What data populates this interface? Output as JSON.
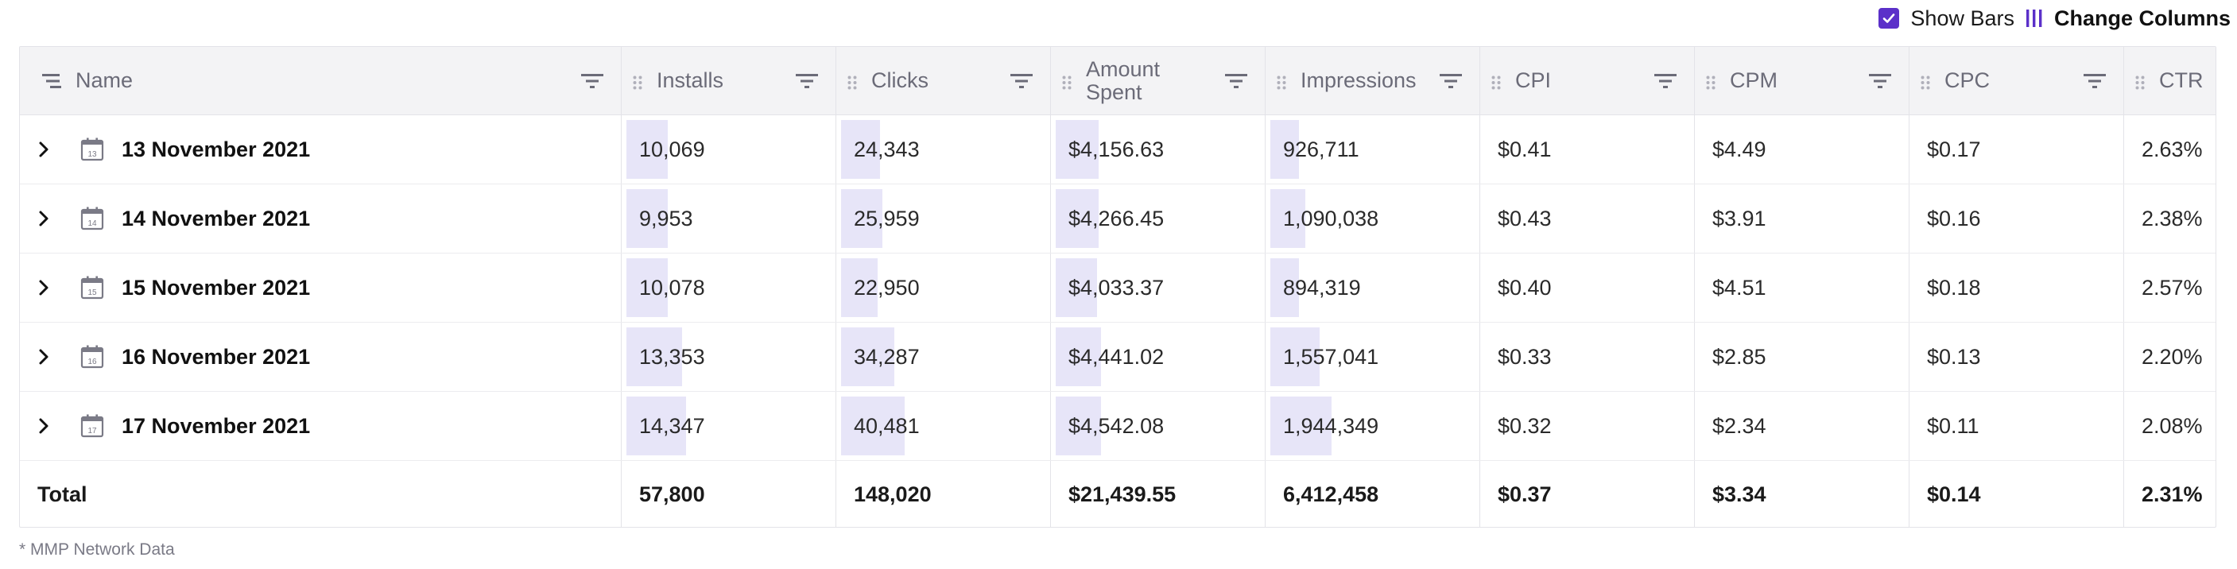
{
  "toolbar": {
    "show_bars_label": "Show Bars",
    "show_bars_checked": true,
    "change_columns_label": "Change Columns"
  },
  "colors": {
    "accent": "#5b30c9",
    "bar": "#e7e5f8",
    "header_bg": "#f3f3f5"
  },
  "columns": [
    "Name",
    "Installs",
    "Clicks",
    "Amount Spent",
    "Impressions",
    "CPI",
    "CPM",
    "CPC",
    "CTR"
  ],
  "rows": [
    {
      "date": "13 November 2021",
      "day": "13",
      "installs": "10,069",
      "clicks": "24,343",
      "amount_spent": "$4,156.63",
      "impressions": "926,711",
      "cpi": "$0.41",
      "cpm": "$4.49",
      "cpc": "$0.17",
      "ctr": "2.63%"
    },
    {
      "date": "14 November 2021",
      "day": "14",
      "installs": "9,953",
      "clicks": "25,959",
      "amount_spent": "$4,266.45",
      "impressions": "1,090,038",
      "cpi": "$0.43",
      "cpm": "$3.91",
      "cpc": "$0.16",
      "ctr": "2.38%"
    },
    {
      "date": "15 November 2021",
      "day": "15",
      "installs": "10,078",
      "clicks": "22,950",
      "amount_spent": "$4,033.37",
      "impressions": "894,319",
      "cpi": "$0.40",
      "cpm": "$4.51",
      "cpc": "$0.18",
      "ctr": "2.57%"
    },
    {
      "date": "16 November 2021",
      "day": "16",
      "installs": "13,353",
      "clicks": "34,287",
      "amount_spent": "$4,441.02",
      "impressions": "1,557,041",
      "cpi": "$0.33",
      "cpm": "$2.85",
      "cpc": "$0.13",
      "ctr": "2.20%"
    },
    {
      "date": "17 November 2021",
      "day": "17",
      "installs": "14,347",
      "clicks": "40,481",
      "amount_spent": "$4,542.08",
      "impressions": "1,944,349",
      "cpi": "$0.32",
      "cpm": "$2.34",
      "cpc": "$0.11",
      "ctr": "2.08%"
    }
  ],
  "total": {
    "label": "Total",
    "installs": "57,800",
    "clicks": "148,020",
    "amount_spent": "$21,439.55",
    "impressions": "6,412,458",
    "cpi": "$0.37",
    "cpm": "$3.34",
    "cpc": "$0.14",
    "ctr": "2.31%"
  },
  "bar_fractions": {
    "installs": [
      0.2,
      0.2,
      0.2,
      0.27,
      0.29
    ],
    "clicks": [
      0.19,
      0.2,
      0.18,
      0.26,
      0.31
    ],
    "amount_spent": [
      0.21,
      0.21,
      0.2,
      0.22,
      0.22
    ],
    "impressions": [
      0.14,
      0.17,
      0.14,
      0.24,
      0.3
    ]
  },
  "footer_note": "* MMP Network Data"
}
